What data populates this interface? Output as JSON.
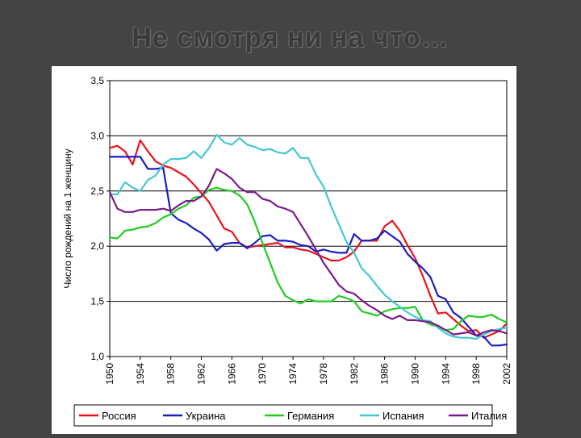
{
  "slide": {
    "title": "Не смотря ни на что…"
  },
  "chart_data": {
    "type": "line",
    "title": "",
    "xlabel": "",
    "ylabel": "Число рождений на 1 женщину",
    "xlim": [
      1950,
      2002
    ],
    "ylim": [
      1.0,
      3.5
    ],
    "x_ticks": [
      "1950",
      "1954",
      "1958",
      "1962",
      "1966",
      "1970",
      "1974",
      "1978",
      "1982",
      "1986",
      "1990",
      "1994",
      "1998",
      "2002"
    ],
    "y_ticks": [
      "1,0",
      "1,5",
      "2,0",
      "2,5",
      "3,0",
      "3,5"
    ],
    "grid": "horizontal",
    "legend_position": "bottom",
    "series": [
      {
        "name": "Россия",
        "color": "#e8141c",
        "x": [
          1950,
          1951,
          1952,
          1953,
          1954,
          1955,
          1956,
          1957,
          1958,
          1959,
          1960,
          1961,
          1962,
          1963,
          1964,
          1965,
          1966,
          1967,
          1968,
          1969,
          1970,
          1971,
          1972,
          1973,
          1974,
          1975,
          1976,
          1977,
          1978,
          1979,
          1980,
          1981,
          1982,
          1983,
          1984,
          1985,
          1986,
          1987,
          1988,
          1989,
          1990,
          1991,
          1992,
          1993,
          1994,
          1995,
          1996,
          1997,
          1998,
          1999,
          2000,
          2001,
          2002
        ],
        "y": [
          2.89,
          2.91,
          2.86,
          2.74,
          2.96,
          2.86,
          2.77,
          2.73,
          2.71,
          2.67,
          2.63,
          2.56,
          2.48,
          2.4,
          2.28,
          2.16,
          2.13,
          2.03,
          1.99,
          2.0,
          2.01,
          2.02,
          2.03,
          1.99,
          1.99,
          1.97,
          1.96,
          1.93,
          1.9,
          1.87,
          1.87,
          1.9,
          1.95,
          2.05,
          2.05,
          2.05,
          2.18,
          2.23,
          2.14,
          2.01,
          1.89,
          1.73,
          1.55,
          1.39,
          1.4,
          1.34,
          1.28,
          1.23,
          1.24,
          1.17,
          1.2,
          1.23,
          1.3
        ]
      },
      {
        "name": "Украина",
        "color": "#1c1ec0",
        "x": [
          1950,
          1951,
          1952,
          1953,
          1954,
          1955,
          1956,
          1957,
          1958,
          1959,
          1960,
          1961,
          1962,
          1963,
          1964,
          1965,
          1966,
          1967,
          1968,
          1969,
          1970,
          1971,
          1972,
          1973,
          1974,
          1975,
          1976,
          1977,
          1978,
          1979,
          1980,
          1981,
          1982,
          1983,
          1984,
          1985,
          1986,
          1987,
          1988,
          1989,
          1990,
          1991,
          1992,
          1993,
          1994,
          1995,
          1996,
          1997,
          1998,
          1999,
          2000,
          2001,
          2002
        ],
        "y": [
          2.81,
          2.81,
          2.81,
          2.81,
          2.81,
          2.7,
          2.7,
          2.71,
          2.3,
          2.24,
          2.21,
          2.16,
          2.12,
          2.06,
          1.96,
          2.02,
          2.03,
          2.03,
          1.98,
          2.03,
          2.09,
          2.1,
          2.05,
          2.05,
          2.04,
          2.01,
          2.0,
          1.95,
          1.97,
          1.95,
          1.94,
          1.94,
          2.11,
          2.05,
          2.05,
          2.07,
          2.14,
          2.09,
          2.04,
          1.93,
          1.86,
          1.8,
          1.72,
          1.55,
          1.52,
          1.4,
          1.35,
          1.27,
          1.19,
          1.18,
          1.1,
          1.1,
          1.11
        ]
      },
      {
        "name": "Германия",
        "color": "#22cc22",
        "x": [
          1950,
          1951,
          1952,
          1953,
          1954,
          1955,
          1956,
          1957,
          1958,
          1959,
          1960,
          1961,
          1962,
          1963,
          1964,
          1965,
          1966,
          1967,
          1968,
          1969,
          1970,
          1971,
          1972,
          1973,
          1974,
          1975,
          1976,
          1977,
          1978,
          1979,
          1980,
          1981,
          1982,
          1983,
          1984,
          1985,
          1986,
          1987,
          1988,
          1989,
          1990,
          1991,
          1992,
          1993,
          1994,
          1995,
          1996,
          1997,
          1998,
          1999,
          2000,
          2001,
          2002
        ],
        "y": [
          2.08,
          2.07,
          2.14,
          2.15,
          2.17,
          2.18,
          2.21,
          2.26,
          2.29,
          2.34,
          2.37,
          2.44,
          2.45,
          2.51,
          2.53,
          2.51,
          2.5,
          2.46,
          2.38,
          2.22,
          2.03,
          1.85,
          1.67,
          1.55,
          1.51,
          1.48,
          1.52,
          1.5,
          1.5,
          1.5,
          1.55,
          1.53,
          1.5,
          1.41,
          1.39,
          1.37,
          1.41,
          1.43,
          1.44,
          1.44,
          1.45,
          1.33,
          1.29,
          1.27,
          1.24,
          1.25,
          1.32,
          1.37,
          1.36,
          1.36,
          1.38,
          1.34,
          1.31
        ]
      },
      {
        "name": "Испания",
        "color": "#44c8d0",
        "x": [
          1950,
          1951,
          1952,
          1953,
          1954,
          1955,
          1956,
          1957,
          1958,
          1959,
          1960,
          1961,
          1962,
          1963,
          1964,
          1965,
          1966,
          1967,
          1968,
          1969,
          1970,
          1971,
          1972,
          1973,
          1974,
          1975,
          1976,
          1977,
          1978,
          1979,
          1980,
          1981,
          1982,
          1983,
          1984,
          1985,
          1986,
          1987,
          1988,
          1989,
          1990,
          1991,
          1992,
          1993,
          1994,
          1995,
          1996,
          1997,
          1998,
          1999,
          2000,
          2001,
          2002
        ],
        "y": [
          2.47,
          2.47,
          2.58,
          2.53,
          2.5,
          2.6,
          2.64,
          2.74,
          2.79,
          2.79,
          2.8,
          2.86,
          2.8,
          2.89,
          3.01,
          2.94,
          2.92,
          2.98,
          2.92,
          2.9,
          2.87,
          2.88,
          2.85,
          2.84,
          2.89,
          2.8,
          2.8,
          2.65,
          2.54,
          2.36,
          2.2,
          2.04,
          1.94,
          1.8,
          1.73,
          1.64,
          1.56,
          1.5,
          1.45,
          1.4,
          1.36,
          1.33,
          1.32,
          1.26,
          1.21,
          1.18,
          1.17,
          1.17,
          1.16,
          1.2,
          1.23,
          1.25,
          1.26
        ]
      },
      {
        "name": "Италия",
        "color": "#7a1a8a",
        "x": [
          1950,
          1951,
          1952,
          1953,
          1954,
          1955,
          1956,
          1957,
          1958,
          1959,
          1960,
          1961,
          1962,
          1963,
          1964,
          1965,
          1966,
          1967,
          1968,
          1969,
          1970,
          1971,
          1972,
          1973,
          1974,
          1975,
          1976,
          1977,
          1978,
          1979,
          1980,
          1981,
          1982,
          1983,
          1984,
          1985,
          1986,
          1987,
          1988,
          1989,
          1990,
          1991,
          1992,
          1993,
          1994,
          1995,
          1996,
          1997,
          1998,
          1999,
          2000,
          2001,
          2002
        ],
        "y": [
          2.49,
          2.34,
          2.31,
          2.31,
          2.33,
          2.33,
          2.33,
          2.34,
          2.32,
          2.37,
          2.41,
          2.41,
          2.45,
          2.55,
          2.7,
          2.66,
          2.61,
          2.53,
          2.49,
          2.49,
          2.43,
          2.41,
          2.36,
          2.34,
          2.31,
          2.2,
          2.09,
          1.97,
          1.85,
          1.75,
          1.65,
          1.59,
          1.57,
          1.51,
          1.46,
          1.42,
          1.37,
          1.34,
          1.37,
          1.33,
          1.33,
          1.32,
          1.31,
          1.28,
          1.24,
          1.2,
          1.21,
          1.22,
          1.19,
          1.22,
          1.24,
          1.23,
          1.21
        ]
      }
    ]
  }
}
